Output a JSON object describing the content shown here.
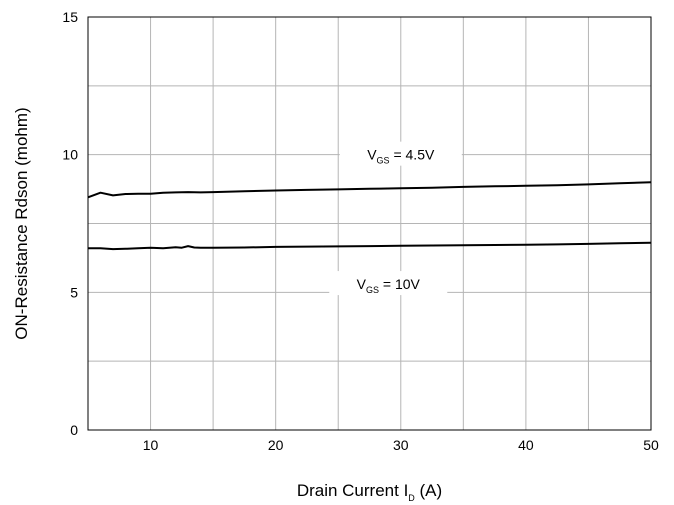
{
  "chart_data": {
    "type": "line",
    "title": "",
    "xlabel": "Drain Current I",
    "xlabel_sub": "D",
    "xlabel_unit": " (A)",
    "ylabel": "ON-Resistance Rdson (mohm)",
    "xlim": [
      5,
      50
    ],
    "ylim": [
      0,
      15
    ],
    "x_ticks": [
      10,
      20,
      30,
      40,
      50
    ],
    "y_ticks": [
      0,
      5,
      10,
      15
    ],
    "grid": true,
    "x_grid": [
      5,
      10,
      15,
      20,
      25,
      30,
      35,
      40,
      45,
      50
    ],
    "y_grid": [
      0,
      2.5,
      5,
      7.5,
      10,
      12.5,
      15
    ],
    "series": [
      {
        "label_main": "V",
        "label_sub": "GS",
        "label_rest": " = 4.5V",
        "color": "#000000",
        "x": [
          5,
          6,
          7,
          8,
          9,
          10,
          11,
          12,
          13,
          14,
          15,
          17.5,
          20,
          22.5,
          25,
          27.5,
          30,
          32.5,
          35,
          37.5,
          40,
          42.5,
          45,
          47.5,
          50
        ],
        "y": [
          8.45,
          8.62,
          8.52,
          8.57,
          8.58,
          8.58,
          8.62,
          8.63,
          8.64,
          8.63,
          8.64,
          8.67,
          8.7,
          8.72,
          8.74,
          8.76,
          8.78,
          8.8,
          8.83,
          8.85,
          8.87,
          8.89,
          8.92,
          8.96,
          9.0
        ]
      },
      {
        "label_main": "V",
        "label_sub": "GS",
        "label_rest": " = 10V",
        "color": "#000000",
        "x": [
          5,
          6,
          7,
          8,
          9,
          10,
          11,
          12,
          12.5,
          13,
          13.5,
          14,
          15,
          17.5,
          20,
          22.5,
          25,
          27.5,
          30,
          32.5,
          35,
          37.5,
          40,
          42.5,
          45,
          47.5,
          50
        ],
        "y": [
          6.6,
          6.6,
          6.57,
          6.58,
          6.6,
          6.62,
          6.6,
          6.64,
          6.62,
          6.68,
          6.63,
          6.62,
          6.62,
          6.63,
          6.65,
          6.66,
          6.67,
          6.68,
          6.69,
          6.7,
          6.71,
          6.72,
          6.73,
          6.74,
          6.76,
          6.78,
          6.8
        ]
      }
    ],
    "annotations": [
      {
        "series_index": 0,
        "x": 30,
        "y": 10
      },
      {
        "series_index": 1,
        "x": 29,
        "y": 5.3
      }
    ]
  }
}
